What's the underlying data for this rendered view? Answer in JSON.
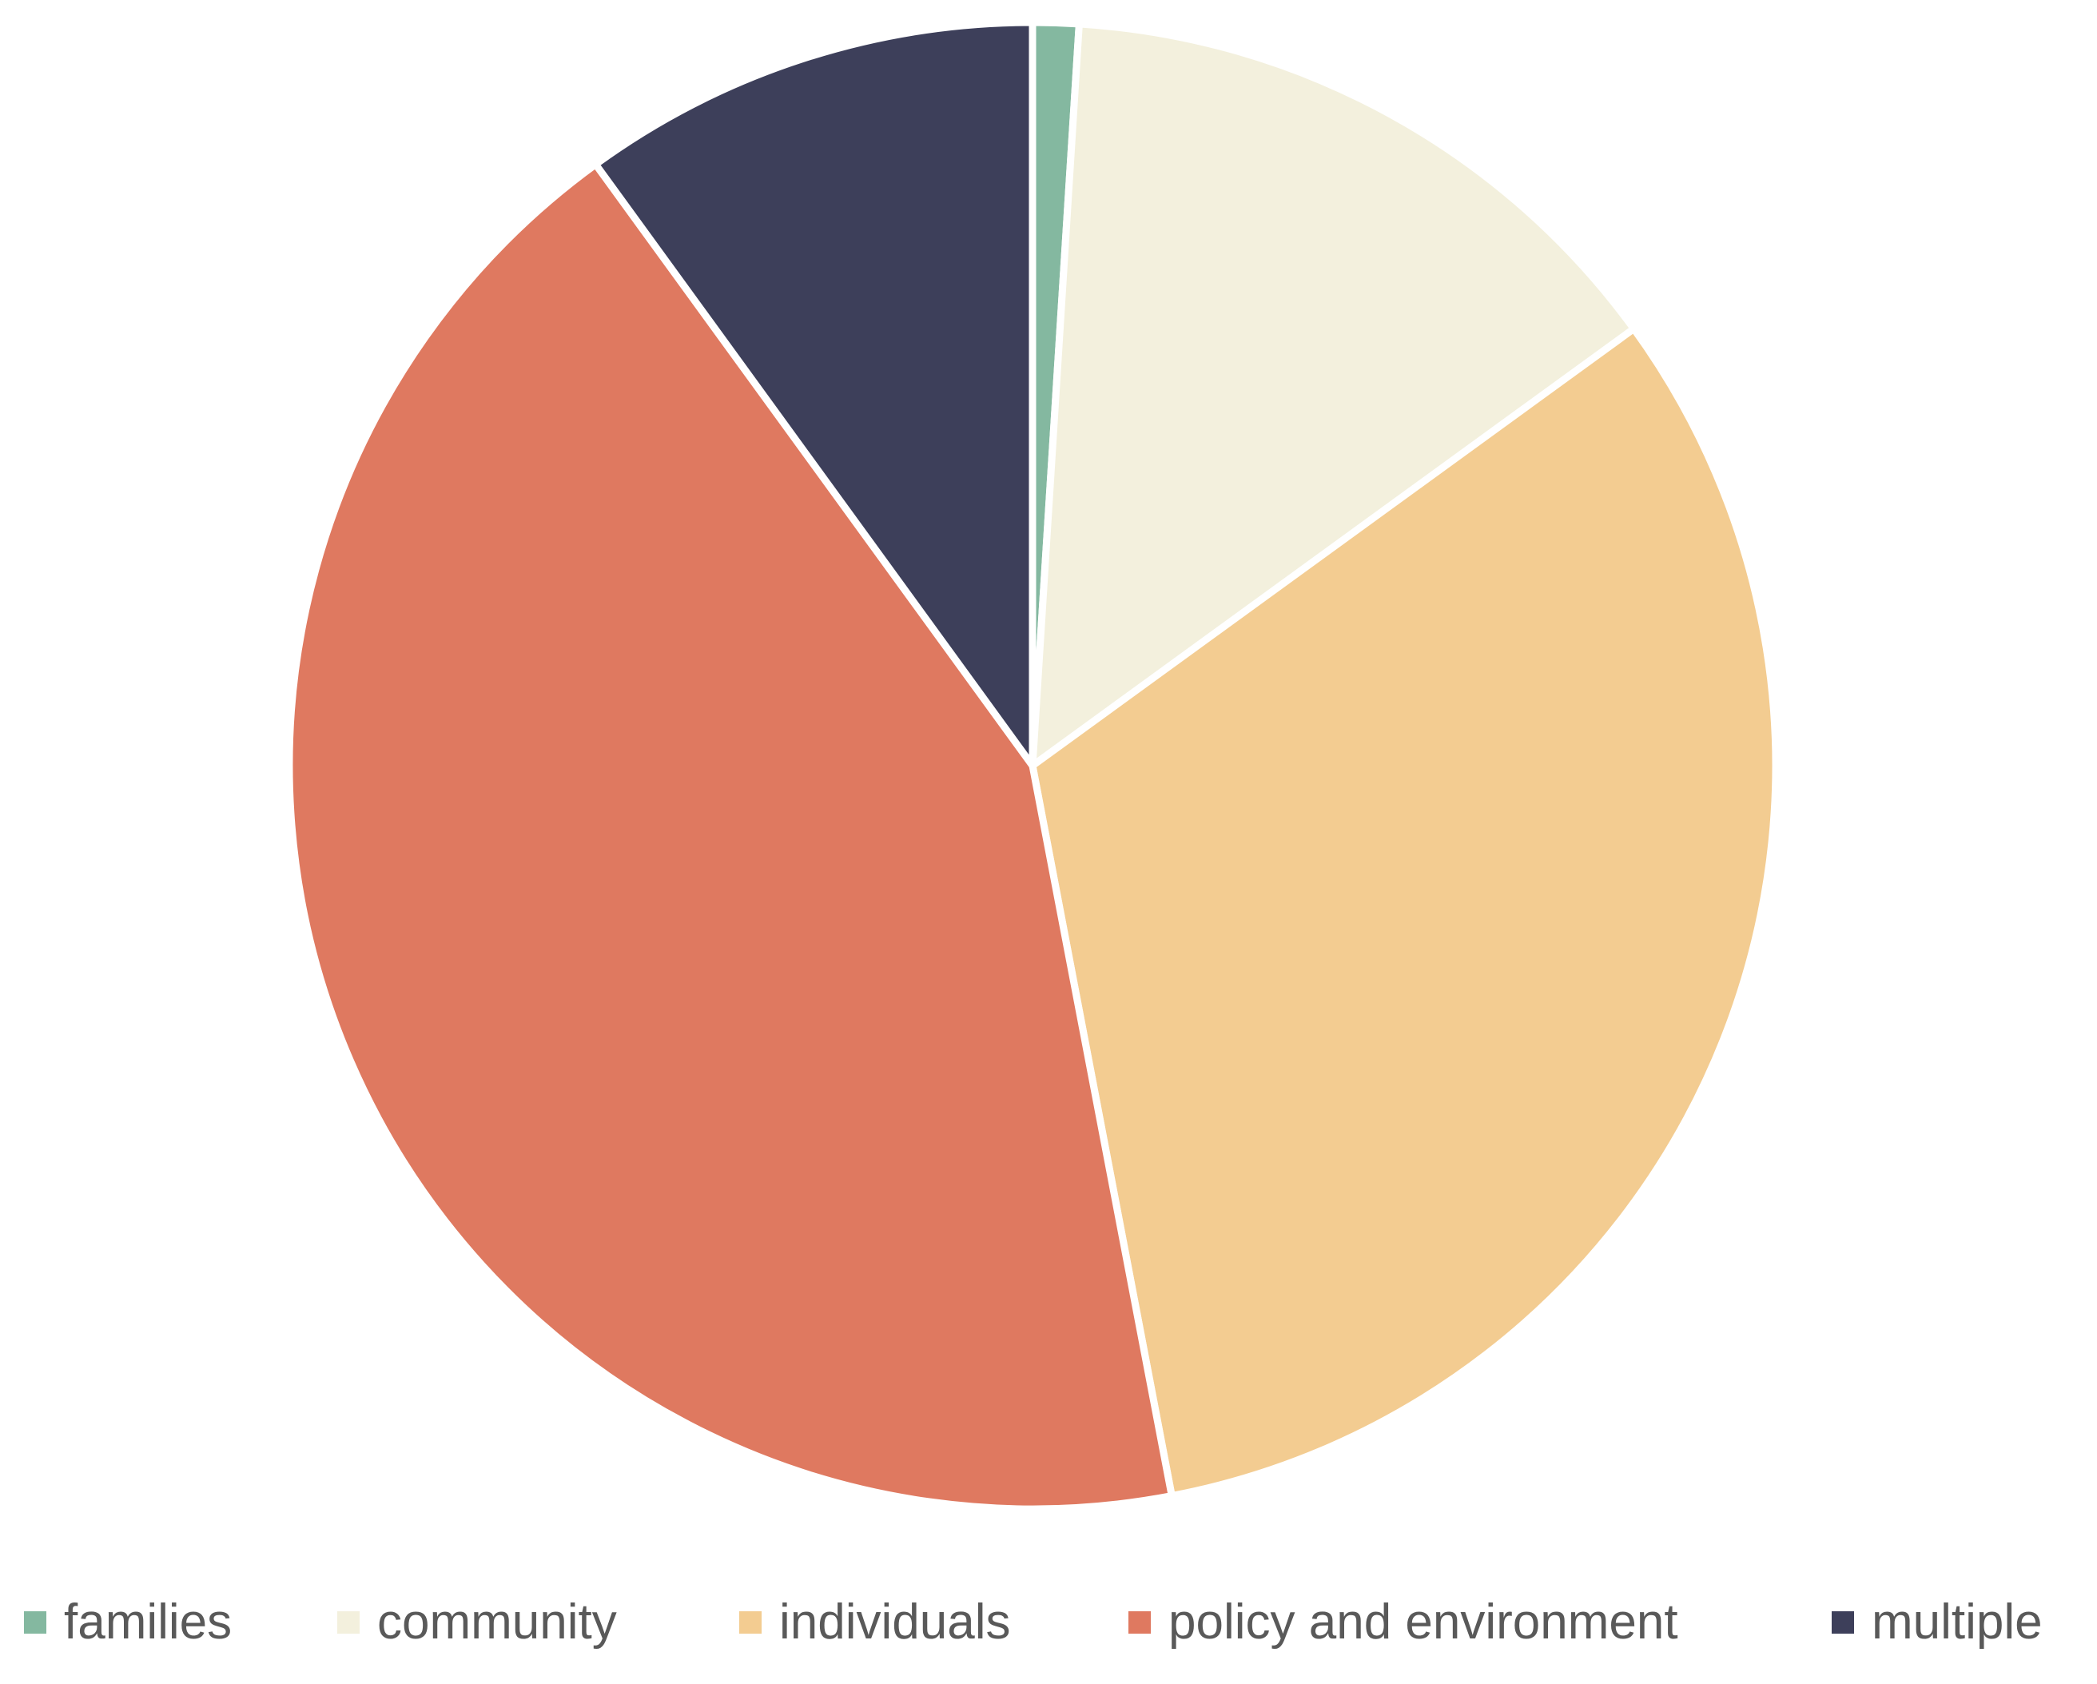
{
  "chart_data": {
    "type": "pie",
    "title": "",
    "legend_position": "bottom",
    "start_angle_deg": 0,
    "direction": "clockwise",
    "slices": [
      {
        "name": "families",
        "value": 1,
        "color": "#84B8A0"
      },
      {
        "name": "community",
        "value": 14,
        "color": "#F3F0DD"
      },
      {
        "name": "individuals",
        "value": 32,
        "color": "#F3CC91"
      },
      {
        "name": "policy and environment",
        "value": 43,
        "color": "#DF7960"
      },
      {
        "name": "multiple",
        "value": 10,
        "color": "#3D3F5A"
      }
    ]
  }
}
